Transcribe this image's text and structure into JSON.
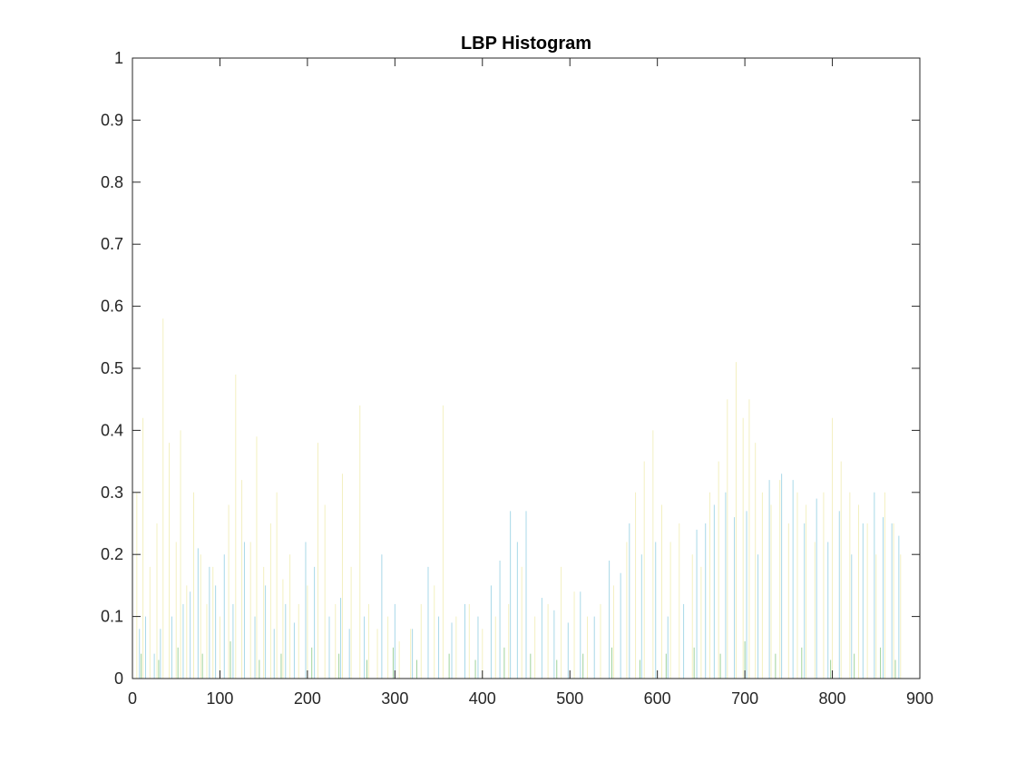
{
  "chart_data": {
    "type": "bar",
    "title": "LBP Histogram",
    "xlabel": "",
    "ylabel": "",
    "xlim": [
      0,
      900
    ],
    "ylim": [
      0,
      1
    ],
    "xticks": [
      0,
      100,
      200,
      300,
      400,
      500,
      600,
      700,
      800,
      900
    ],
    "xtick_labels": [
      "0",
      "100",
      "200",
      "300",
      "400",
      "500",
      "600",
      "700",
      "800",
      "900"
    ],
    "yticks": [
      0,
      0.1,
      0.2,
      0.3,
      0.4,
      0.5,
      0.6,
      0.7,
      0.8,
      0.9,
      1
    ],
    "ytick_labels": [
      "0",
      "0.1",
      "0.2",
      "0.3",
      "0.4",
      "0.5",
      "0.6",
      "0.7",
      "0.8",
      "0.9",
      "1"
    ],
    "grid": false,
    "box": true,
    "series": [
      {
        "color": "#f3f0c0",
        "x": [
          5,
          12,
          20,
          28,
          35,
          42,
          50,
          55,
          62,
          70,
          78,
          85,
          92,
          100,
          110,
          118,
          125,
          135,
          142,
          150,
          158,
          165,
          172,
          180,
          190,
          200,
          212,
          220,
          232,
          240,
          250,
          260,
          270,
          280,
          292,
          305,
          318,
          330,
          345,
          355,
          370,
          385,
          400,
          415,
          430,
          445,
          460,
          475,
          490,
          505,
          520,
          535,
          550,
          565,
          575,
          585,
          595,
          605,
          615,
          625,
          640,
          650,
          660,
          670,
          680,
          690,
          698,
          705,
          712,
          720,
          730,
          740,
          750,
          760,
          770,
          780,
          790,
          800,
          810,
          820,
          830,
          840,
          850,
          860,
          870,
          878
        ],
        "values": [
          0.3,
          0.42,
          0.18,
          0.25,
          0.58,
          0.38,
          0.22,
          0.4,
          0.15,
          0.3,
          0.2,
          0.12,
          0.18,
          0.1,
          0.28,
          0.49,
          0.32,
          0.22,
          0.39,
          0.18,
          0.25,
          0.3,
          0.16,
          0.2,
          0.12,
          0.15,
          0.38,
          0.28,
          0.12,
          0.33,
          0.18,
          0.44,
          0.12,
          0.08,
          0.1,
          0.06,
          0.08,
          0.12,
          0.15,
          0.44,
          0.1,
          0.12,
          0.08,
          0.1,
          0.12,
          0.18,
          0.1,
          0.12,
          0.18,
          0.14,
          0.1,
          0.12,
          0.15,
          0.22,
          0.3,
          0.35,
          0.4,
          0.28,
          0.22,
          0.25,
          0.2,
          0.18,
          0.3,
          0.35,
          0.45,
          0.51,
          0.42,
          0.45,
          0.38,
          0.3,
          0.28,
          0.32,
          0.25,
          0.3,
          0.28,
          0.22,
          0.3,
          0.42,
          0.35,
          0.3,
          0.28,
          0.25,
          0.2,
          0.3,
          0.25,
          0.2
        ]
      },
      {
        "color": "#a8d8e8",
        "x": [
          8,
          15,
          25,
          32,
          45,
          58,
          66,
          75,
          88,
          95,
          105,
          115,
          128,
          140,
          152,
          162,
          175,
          185,
          198,
          208,
          225,
          238,
          248,
          265,
          285,
          300,
          320,
          338,
          350,
          365,
          380,
          395,
          410,
          420,
          432,
          440,
          450,
          468,
          482,
          498,
          512,
          528,
          545,
          558,
          568,
          582,
          598,
          612,
          630,
          645,
          655,
          665,
          678,
          688,
          702,
          715,
          728,
          742,
          755,
          768,
          782,
          795,
          808,
          822,
          835,
          848,
          858,
          868,
          876
        ],
        "values": [
          0.08,
          0.1,
          0.04,
          0.08,
          0.1,
          0.12,
          0.14,
          0.21,
          0.18,
          0.15,
          0.2,
          0.12,
          0.22,
          0.1,
          0.15,
          0.08,
          0.12,
          0.09,
          0.22,
          0.18,
          0.1,
          0.13,
          0.08,
          0.1,
          0.2,
          0.12,
          0.08,
          0.18,
          0.1,
          0.09,
          0.12,
          0.1,
          0.15,
          0.19,
          0.27,
          0.22,
          0.27,
          0.13,
          0.11,
          0.09,
          0.14,
          0.1,
          0.19,
          0.17,
          0.25,
          0.2,
          0.22,
          0.1,
          0.12,
          0.24,
          0.25,
          0.28,
          0.3,
          0.26,
          0.27,
          0.2,
          0.32,
          0.33,
          0.32,
          0.25,
          0.29,
          0.22,
          0.27,
          0.2,
          0.25,
          0.3,
          0.26,
          0.25,
          0.23
        ]
      },
      {
        "color": "#9fd29a",
        "x": [
          10,
          30,
          52,
          80,
          112,
          145,
          170,
          205,
          236,
          268,
          298,
          325,
          362,
          392,
          425,
          455,
          485,
          515,
          548,
          580,
          610,
          642,
          672,
          700,
          735,
          765,
          798,
          825,
          855,
          872
        ],
        "values": [
          0.04,
          0.03,
          0.05,
          0.04,
          0.06,
          0.03,
          0.04,
          0.05,
          0.04,
          0.03,
          0.05,
          0.03,
          0.04,
          0.03,
          0.05,
          0.04,
          0.03,
          0.04,
          0.05,
          0.03,
          0.04,
          0.05,
          0.04,
          0.06,
          0.04,
          0.05,
          0.03,
          0.04,
          0.05,
          0.03
        ]
      }
    ]
  }
}
